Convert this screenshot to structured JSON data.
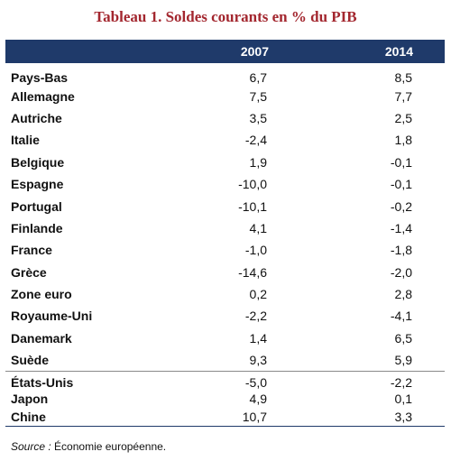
{
  "title": "Tableau 1. Soldes courants en % du PIB",
  "table": {
    "headers": [
      "",
      "2007",
      "2014"
    ],
    "rows_main": [
      {
        "label": "Pays-Bas",
        "v2007": "6,7",
        "v2014": "8,5"
      },
      {
        "label": "Allemagne",
        "v2007": "7,5",
        "v2014": "7,7"
      },
      {
        "label": "Autriche",
        "v2007": "3,5",
        "v2014": "2,5"
      },
      {
        "label": "Italie",
        "v2007": "-2,4",
        "v2014": "1,8"
      },
      {
        "label": "Belgique",
        "v2007": "1,9",
        "v2014": "-0,1"
      },
      {
        "label": "Espagne",
        "v2007": "-10,0",
        "v2014": "-0,1"
      },
      {
        "label": "Portugal",
        "v2007": "-10,1",
        "v2014": "-0,2"
      },
      {
        "label": "Finlande",
        "v2007": "4,1",
        "v2014": "-1,4"
      },
      {
        "label": "France",
        "v2007": "-1,0",
        "v2014": "-1,8"
      },
      {
        "label": "Grèce",
        "v2007": "-14,6",
        "v2014": "-2,0"
      },
      {
        "label": "Zone euro",
        "v2007": "0,2",
        "v2014": "2,8"
      },
      {
        "label": "Royaume-Uni",
        "v2007": "-2,2",
        "v2014": "-4,1"
      },
      {
        "label": "Danemark",
        "v2007": "1,4",
        "v2014": "6,5"
      },
      {
        "label": "Suède",
        "v2007": "9,3",
        "v2014": "5,9"
      }
    ],
    "rows_other": [
      {
        "label": "États-Unis",
        "v2007": "-5,0",
        "v2014": "-2,2"
      },
      {
        "label": "Japon",
        "v2007": "4,9",
        "v2014": "0,1"
      },
      {
        "label": "Chine",
        "v2007": "10,7",
        "v2014": "3,3"
      }
    ]
  },
  "source": {
    "label": "Source :",
    "text": "Économie européenne."
  },
  "colors": {
    "title": "#a3272f",
    "header_bg": "#1f3a6a",
    "header_text": "#ffffff"
  }
}
